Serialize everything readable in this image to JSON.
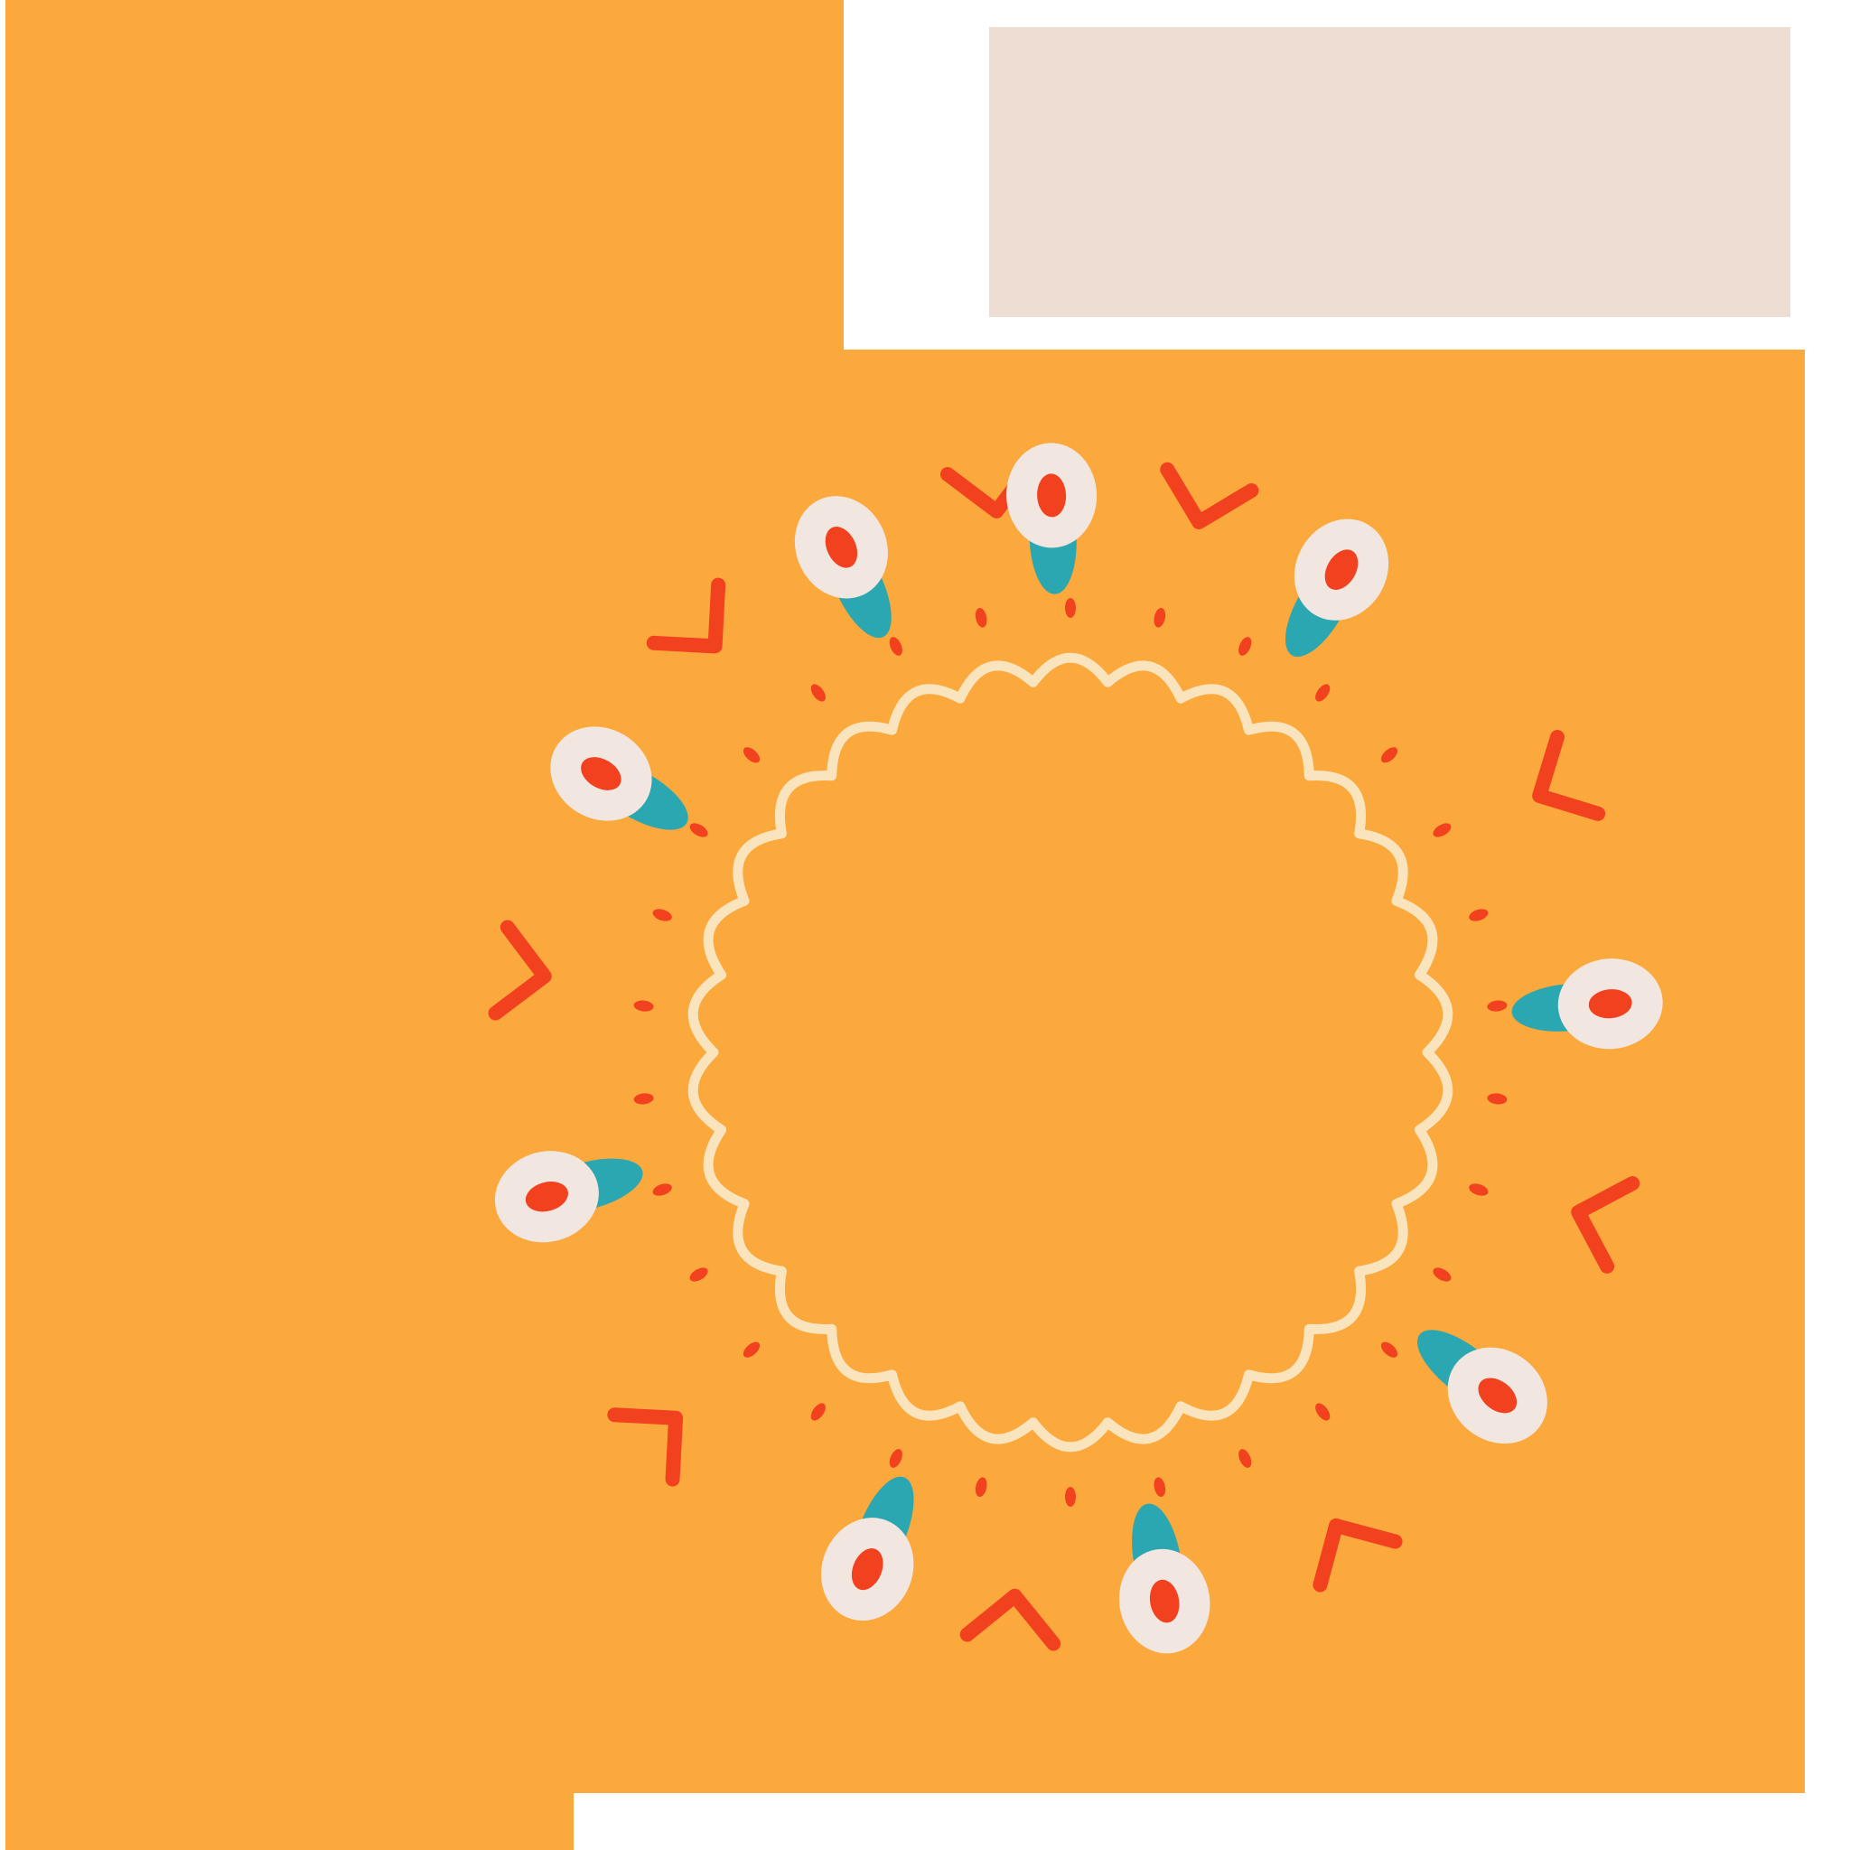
{
  "palette": {
    "orange": "#FBA83D",
    "cream_card": "#EEDDD3",
    "petal_white": "#F2E6E1",
    "teal": "#2AA7B0",
    "red": "#F2411F",
    "scallop_cream": "#FAE7C4",
    "background": "#FFFFFF"
  },
  "illustration": {
    "elements": [
      "orange-block",
      "cream-card",
      "scalloped-ring",
      "eye-petals",
      "chevron-marks",
      "dot-marks"
    ],
    "eye_petal_count": 9,
    "chevron_count": 9
  }
}
